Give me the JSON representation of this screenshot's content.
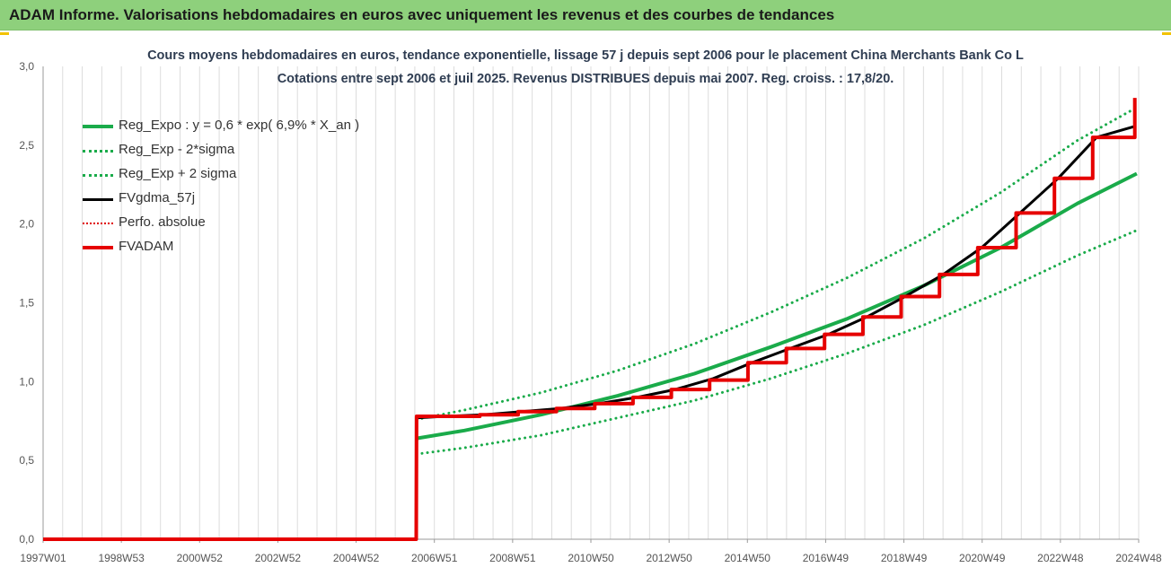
{
  "banner": {
    "title": "ADAM Informe. Valorisations hebdomadaires en euros avec uniquement les revenus et des courbes de tendances"
  },
  "colors": {
    "banner_bg": "#8ed07c",
    "reg_expo": "#1aab4a",
    "sigma": "#1aab4a",
    "fvgdma": "#000000",
    "perfo": "#e00000",
    "fvadam": "#e60000",
    "title_text": "#2f3d52"
  },
  "chart_data": {
    "type": "line",
    "title": "Cours moyens hebdomadaires en euros, tendance exponentielle, lissage 57 j depuis sept 2006 pour le placement China Merchants Bank Co L",
    "subtitle": "Cotations entre sept 2006 et juil 2025. Revenus DISTRIBUES depuis mai 2007. Reg. croiss. : 17,8/20.",
    "xlabel": "",
    "ylabel": "",
    "ylim": [
      0,
      3
    ],
    "yticks": [
      "0,0",
      "0,5",
      "1,0",
      "1,5",
      "2,0",
      "2,5",
      "3,0"
    ],
    "xlim": [
      1997.0,
      2025.6
    ],
    "xtick_labels": [
      "1997W01",
      "1998W53",
      "2000W52",
      "2002W52",
      "2004W52",
      "2006W51",
      "2008W51",
      "2010W50",
      "2012W50",
      "2014W50",
      "2016W49",
      "2018W49",
      "2020W49",
      "2022W48",
      "2024W48"
    ],
    "grid": "vertical",
    "legend_position": "top-left",
    "legend": [
      {
        "label": "Reg_Expo : y = 0,6 * exp( 6,9% *  X_an )",
        "style": "solid",
        "color": "#1aab4a",
        "width": 4
      },
      {
        "label": "Reg_Exp - 2*sigma",
        "style": "dotted",
        "color": "#1aab4a",
        "width": 3
      },
      {
        "label": "Reg_Exp + 2 sigma",
        "style": "dotted",
        "color": "#1aab4a",
        "width": 3
      },
      {
        "label": "FVgdma_57j",
        "style": "solid",
        "color": "#000000",
        "width": 3
      },
      {
        "label": "Perfo. absolue",
        "style": "dotted",
        "color": "#e00000",
        "width": 2
      },
      {
        "label": "FVADAM",
        "style": "solid",
        "color": "#e60000",
        "width": 4
      }
    ],
    "series": [
      {
        "name": "Reg_Expo : y = 0,6 * exp( 6,9% *  X_an )",
        "x": [
          2006.75,
          2008,
          2010,
          2012,
          2014,
          2016,
          2018,
          2020,
          2022,
          2024,
          2025.55
        ],
        "y": [
          0.64,
          0.69,
          0.79,
          0.91,
          1.05,
          1.22,
          1.4,
          1.61,
          1.85,
          2.13,
          2.32
        ]
      },
      {
        "name": "Reg_Exp - 2*sigma",
        "x": [
          2006.75,
          2008,
          2010,
          2012,
          2014,
          2016,
          2018,
          2020,
          2022,
          2024,
          2025.55
        ],
        "y": [
          0.54,
          0.58,
          0.66,
          0.77,
          0.88,
          1.02,
          1.18,
          1.36,
          1.57,
          1.8,
          1.96
        ]
      },
      {
        "name": "Reg_Exp + 2 sigma",
        "x": [
          2006.75,
          2008,
          2010,
          2012,
          2014,
          2016,
          2018,
          2020,
          2022,
          2024,
          2025.55
        ],
        "y": [
          0.76,
          0.82,
          0.93,
          1.07,
          1.24,
          1.44,
          1.66,
          1.91,
          2.2,
          2.53,
          2.74
        ]
      },
      {
        "name": "FVADAM",
        "x": [
          1997.0,
          2006.74,
          2006.75,
          2007.4,
          2007.4,
          2008.4,
          2008.4,
          2009.4,
          2009.4,
          2010.4,
          2010.4,
          2011.4,
          2011.4,
          2012.4,
          2012.4,
          2013.4,
          2013.4,
          2014.4,
          2014.4,
          2015.4,
          2015.4,
          2016.4,
          2016.4,
          2017.4,
          2017.4,
          2018.4,
          2018.4,
          2019.4,
          2019.4,
          2020.4,
          2020.4,
          2021.4,
          2021.4,
          2022.4,
          2022.4,
          2023.4,
          2023.4,
          2024.4,
          2024.4,
          2025.5,
          2025.5
        ],
        "y": [
          0.0,
          0.0,
          0.78,
          0.78,
          0.78,
          0.78,
          0.79,
          0.79,
          0.81,
          0.81,
          0.83,
          0.83,
          0.86,
          0.86,
          0.9,
          0.9,
          0.95,
          0.95,
          1.01,
          1.01,
          1.12,
          1.12,
          1.21,
          1.21,
          1.3,
          1.3,
          1.41,
          1.41,
          1.54,
          1.54,
          1.68,
          1.68,
          1.85,
          1.85,
          2.07,
          2.07,
          2.29,
          2.29,
          2.55,
          2.55,
          2.8
        ]
      },
      {
        "name": "FVgdma_57j",
        "x": [
          2006.75,
          2007.5,
          2008.5,
          2009.5,
          2010.5,
          2011.5,
          2012.5,
          2013.5,
          2014.5,
          2015.5,
          2016.5,
          2017.5,
          2018.5,
          2019.5,
          2020.5,
          2021.5,
          2022.5,
          2023.5,
          2024.5,
          2025.5
        ],
        "y": [
          0.77,
          0.78,
          0.79,
          0.81,
          0.83,
          0.86,
          0.9,
          0.95,
          1.02,
          1.12,
          1.21,
          1.3,
          1.41,
          1.54,
          1.68,
          1.85,
          2.07,
          2.29,
          2.55,
          2.62
        ]
      }
    ]
  }
}
